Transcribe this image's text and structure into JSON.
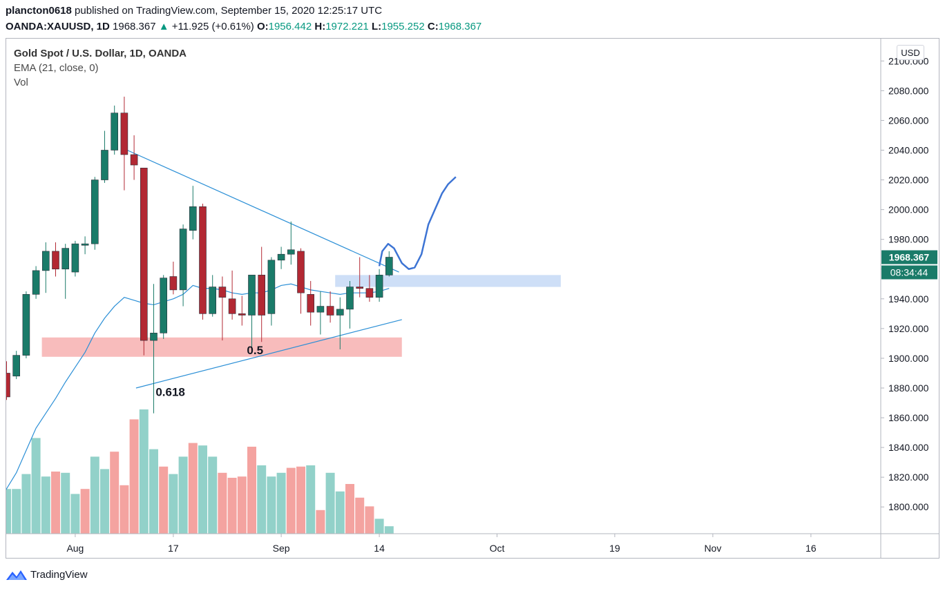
{
  "header": {
    "author": "plancton0618",
    "published": "published on TradingView.com, September 15, 2020 12:25:17 UTC",
    "symbol": "OANDA:XAUUSD, 1D",
    "last": "1968.367",
    "change": "+11.925 (+0.61%)",
    "o_label": "O:",
    "o_value": "1956.442",
    "h_label": "H:",
    "h_value": "1972.221",
    "l_label": "L:",
    "l_value": "1955.252",
    "c_label": "C:",
    "c_value": "1968.367"
  },
  "legend": {
    "symbol": "Gold Spot / U.S. Dollar, 1D, OANDA",
    "ema": "EMA (21, close, 0)",
    "vol": "Vol"
  },
  "currency_button": "USD",
  "price_badge": "1968.367",
  "countdown_badge": "08:34:44",
  "footer": {
    "brand": "TradingView"
  },
  "colors": {
    "up": "#1a7b69",
    "down": "#b22833",
    "vol_up": "#92d1c9",
    "vol_down": "#f4a3a0",
    "ema": "#2b8fd6",
    "trend": "#2b8fd6",
    "projection": "#3d74d4",
    "support_zone": "#f7b5b5",
    "resist_zone": "#c9dcf6"
  },
  "chart_data": {
    "type": "candlestick",
    "title": "Gold Spot / U.S. Dollar, 1D, OANDA",
    "ylim": [
      1782,
      2115
    ],
    "y_ticks": [
      "2100.000",
      "2080.000",
      "2060.000",
      "2040.000",
      "2020.000",
      "2000.000",
      "1980.000",
      "1960.000",
      "1940.000",
      "1920.000",
      "1900.000",
      "1880.000",
      "1860.000",
      "1840.000",
      "1820.000",
      "1800.000"
    ],
    "x_ticks": [
      {
        "label": "Aug",
        "x": 7
      },
      {
        "label": "17",
        "x": 17
      },
      {
        "label": "Sep",
        "x": 28
      },
      {
        "label": "14",
        "x": 38
      },
      {
        "label": "Oct",
        "x": 50
      },
      {
        "label": "19",
        "x": 62
      },
      {
        "label": "Nov",
        "x": 72
      },
      {
        "label": "16",
        "x": 82
      }
    ],
    "candles": [
      {
        "x": 0,
        "o": 1890,
        "h": 1898,
        "l": 1872,
        "c": 1874
      },
      {
        "x": 1,
        "o": 1888,
        "h": 1905,
        "l": 1886,
        "c": 1902
      },
      {
        "x": 2,
        "o": 1902,
        "h": 1945,
        "l": 1900,
        "c": 1943
      },
      {
        "x": 3,
        "o": 1943,
        "h": 1962,
        "l": 1940,
        "c": 1959
      },
      {
        "x": 4,
        "o": 1959,
        "h": 1978,
        "l": 1944,
        "c": 1972
      },
      {
        "x": 5,
        "o": 1972,
        "h": 1978,
        "l": 1955,
        "c": 1960
      },
      {
        "x": 6,
        "o": 1960,
        "h": 1977,
        "l": 1940,
        "c": 1974
      },
      {
        "x": 7,
        "o": 1958,
        "h": 1979,
        "l": 1955,
        "c": 1977
      },
      {
        "x": 8,
        "o": 1976,
        "h": 1982,
        "l": 1970,
        "c": 1977
      },
      {
        "x": 9,
        "o": 1977,
        "h": 2022,
        "l": 1973,
        "c": 2020
      },
      {
        "x": 10,
        "o": 2020,
        "h": 2053,
        "l": 2018,
        "c": 2040
      },
      {
        "x": 11,
        "o": 2040,
        "h": 2070,
        "l": 2037,
        "c": 2065
      },
      {
        "x": 12,
        "o": 2065,
        "h": 2076,
        "l": 2013,
        "c": 2037
      },
      {
        "x": 13,
        "o": 2037,
        "h": 2050,
        "l": 2020,
        "c": 2030
      },
      {
        "x": 14,
        "o": 2028,
        "h": 2028,
        "l": 1902,
        "c": 1912
      },
      {
        "x": 15,
        "o": 1912,
        "h": 1950,
        "l": 1863,
        "c": 1917
      },
      {
        "x": 16,
        "o": 1917,
        "h": 1956,
        "l": 1913,
        "c": 1954
      },
      {
        "x": 17,
        "o": 1955,
        "h": 1965,
        "l": 1943,
        "c": 1946
      },
      {
        "x": 18,
        "o": 1946,
        "h": 1990,
        "l": 1935,
        "c": 1987
      },
      {
        "x": 19,
        "o": 1986,
        "h": 2016,
        "l": 1980,
        "c": 2002
      },
      {
        "x": 20,
        "o": 2002,
        "h": 2004,
        "l": 1926,
        "c": 1930
      },
      {
        "x": 21,
        "o": 1930,
        "h": 1956,
        "l": 1928,
        "c": 1948
      },
      {
        "x": 22,
        "o": 1948,
        "h": 1955,
        "l": 1912,
        "c": 1941
      },
      {
        "x": 23,
        "o": 1940,
        "h": 1959,
        "l": 1926,
        "c": 1930
      },
      {
        "x": 24,
        "o": 1930,
        "h": 1942,
        "l": 1922,
        "c": 1929
      },
      {
        "x": 25,
        "o": 1929,
        "h": 1954,
        "l": 1904,
        "c": 1956
      },
      {
        "x": 26,
        "o": 1956,
        "h": 1975,
        "l": 1911,
        "c": 1929
      },
      {
        "x": 27,
        "o": 1930,
        "h": 1968,
        "l": 1922,
        "c": 1966
      },
      {
        "x": 28,
        "o": 1966,
        "h": 1975,
        "l": 1960,
        "c": 1970
      },
      {
        "x": 29,
        "o": 1970,
        "h": 1992,
        "l": 1963,
        "c": 1973
      },
      {
        "x": 30,
        "o": 1972,
        "h": 1974,
        "l": 1930,
        "c": 1944
      },
      {
        "x": 31,
        "o": 1943,
        "h": 1952,
        "l": 1922,
        "c": 1931
      },
      {
        "x": 32,
        "o": 1931,
        "h": 1945,
        "l": 1916,
        "c": 1935
      },
      {
        "x": 33,
        "o": 1935,
        "h": 1945,
        "l": 1924,
        "c": 1929
      },
      {
        "x": 34,
        "o": 1929,
        "h": 1941,
        "l": 1906,
        "c": 1933
      },
      {
        "x": 35,
        "o": 1933,
        "h": 1952,
        "l": 1920,
        "c": 1948
      },
      {
        "x": 36,
        "o": 1948,
        "h": 1968,
        "l": 1941,
        "c": 1947
      },
      {
        "x": 37,
        "o": 1947,
        "h": 1956,
        "l": 1938,
        "c": 1941
      },
      {
        "x": 38,
        "o": 1941,
        "h": 1960,
        "l": 1938,
        "c": 1956
      },
      {
        "x": 39,
        "o": 1956,
        "h": 1972,
        "l": 1955,
        "c": 1968
      }
    ],
    "volume_scale_max": 1,
    "volume": [
      {
        "x": 0,
        "v": 0.36,
        "up": true
      },
      {
        "x": 1,
        "v": 0.36,
        "up": true
      },
      {
        "x": 2,
        "v": 0.48,
        "up": true
      },
      {
        "x": 3,
        "v": 0.77,
        "up": true
      },
      {
        "x": 4,
        "v": 0.46,
        "up": true
      },
      {
        "x": 5,
        "v": 0.5,
        "up": false
      },
      {
        "x": 6,
        "v": 0.49,
        "up": true
      },
      {
        "x": 7,
        "v": 0.32,
        "up": true
      },
      {
        "x": 8,
        "v": 0.36,
        "up": false
      },
      {
        "x": 9,
        "v": 0.62,
        "up": true
      },
      {
        "x": 10,
        "v": 0.52,
        "up": true
      },
      {
        "x": 11,
        "v": 0.66,
        "up": false
      },
      {
        "x": 12,
        "v": 0.39,
        "up": false
      },
      {
        "x": 13,
        "v": 0.92,
        "up": false
      },
      {
        "x": 14,
        "v": 1.0,
        "up": true
      },
      {
        "x": 15,
        "v": 0.68,
        "up": true
      },
      {
        "x": 16,
        "v": 0.54,
        "up": false
      },
      {
        "x": 17,
        "v": 0.48,
        "up": true
      },
      {
        "x": 18,
        "v": 0.62,
        "up": true
      },
      {
        "x": 19,
        "v": 0.73,
        "up": false
      },
      {
        "x": 20,
        "v": 0.71,
        "up": true
      },
      {
        "x": 21,
        "v": 0.62,
        "up": true
      },
      {
        "x": 22,
        "v": 0.49,
        "up": false
      },
      {
        "x": 23,
        "v": 0.45,
        "up": false
      },
      {
        "x": 24,
        "v": 0.46,
        "up": false
      },
      {
        "x": 25,
        "v": 0.7,
        "up": false
      },
      {
        "x": 26,
        "v": 0.55,
        "up": true
      },
      {
        "x": 27,
        "v": 0.46,
        "up": true
      },
      {
        "x": 28,
        "v": 0.49,
        "up": true
      },
      {
        "x": 29,
        "v": 0.53,
        "up": false
      },
      {
        "x": 30,
        "v": 0.54,
        "up": false
      },
      {
        "x": 31,
        "v": 0.55,
        "up": true
      },
      {
        "x": 32,
        "v": 0.19,
        "up": false
      },
      {
        "x": 33,
        "v": 0.49,
        "up": true
      },
      {
        "x": 34,
        "v": 0.34,
        "up": true
      },
      {
        "x": 35,
        "v": 0.4,
        "up": false
      },
      {
        "x": 36,
        "v": 0.29,
        "up": false
      },
      {
        "x": 37,
        "v": 0.22,
        "up": false
      },
      {
        "x": 38,
        "v": 0.12,
        "up": true
      },
      {
        "x": 39,
        "v": 0.06,
        "up": true
      }
    ],
    "ema": [
      {
        "x": -0.3,
        "y": 1809
      },
      {
        "x": 1,
        "y": 1823
      },
      {
        "x": 2,
        "y": 1838
      },
      {
        "x": 3,
        "y": 1853
      },
      {
        "x": 4,
        "y": 1863
      },
      {
        "x": 5,
        "y": 1873
      },
      {
        "x": 6,
        "y": 1884
      },
      {
        "x": 7,
        "y": 1894
      },
      {
        "x": 8,
        "y": 1904
      },
      {
        "x": 9,
        "y": 1917
      },
      {
        "x": 10,
        "y": 1927
      },
      {
        "x": 11,
        "y": 1935
      },
      {
        "x": 12,
        "y": 1941
      },
      {
        "x": 13,
        "y": 1939
      },
      {
        "x": 14,
        "y": 1937
      },
      {
        "x": 15,
        "y": 1936
      },
      {
        "x": 16,
        "y": 1938
      },
      {
        "x": 17,
        "y": 1940
      },
      {
        "x": 18,
        "y": 1943
      },
      {
        "x": 19,
        "y": 1949
      },
      {
        "x": 20,
        "y": 1947
      },
      {
        "x": 21,
        "y": 1947
      },
      {
        "x": 22,
        "y": 1946
      },
      {
        "x": 23,
        "y": 1944
      },
      {
        "x": 24,
        "y": 1943
      },
      {
        "x": 25,
        "y": 1944
      },
      {
        "x": 26,
        "y": 1944
      },
      {
        "x": 27,
        "y": 1946
      },
      {
        "x": 28,
        "y": 1949
      },
      {
        "x": 29,
        "y": 1950
      },
      {
        "x": 30,
        "y": 1948
      },
      {
        "x": 31,
        "y": 1946
      },
      {
        "x": 32,
        "y": 1945
      },
      {
        "x": 33,
        "y": 1944
      },
      {
        "x": 34,
        "y": 1943
      },
      {
        "x": 35,
        "y": 1944
      },
      {
        "x": 36,
        "y": 1944
      },
      {
        "x": 37,
        "y": 1944
      },
      {
        "x": 38,
        "y": 1945
      },
      {
        "x": 39,
        "y": 1947
      }
    ],
    "trendlines": [
      {
        "name": "descending-resistance",
        "x1": 12.3,
        "y1": 2040,
        "x2": 40,
        "y2": 1958
      },
      {
        "name": "ascending-support",
        "x1": 13.2,
        "y1": 1880,
        "x2": 40.3,
        "y2": 1926
      }
    ],
    "zones": [
      {
        "name": "support-zone",
        "x1": 3.6,
        "x2": 40.3,
        "y_top": 1914,
        "y_bot": 1901,
        "color_key": "support_zone"
      },
      {
        "name": "resistance-zone",
        "x1": 33.5,
        "x2": 56.5,
        "y_top": 1956,
        "y_bot": 1948,
        "color_key": "resist_zone"
      }
    ],
    "projection": [
      {
        "x": 38.0,
        "y": 1962
      },
      {
        "x": 38.3,
        "y": 1972
      },
      {
        "x": 38.9,
        "y": 1977
      },
      {
        "x": 39.5,
        "y": 1974
      },
      {
        "x": 40.3,
        "y": 1964
      },
      {
        "x": 41.0,
        "y": 1960
      },
      {
        "x": 41.6,
        "y": 1961
      },
      {
        "x": 42.3,
        "y": 1970
      },
      {
        "x": 43.0,
        "y": 1990
      },
      {
        "x": 43.8,
        "y": 2002
      },
      {
        "x": 44.4,
        "y": 2011
      },
      {
        "x": 45.0,
        "y": 2017
      },
      {
        "x": 45.8,
        "y": 2022
      }
    ],
    "annotations": [
      {
        "text": "0.5",
        "x": 24.5,
        "y": 1905
      },
      {
        "text": "0.618",
        "x": 15.2,
        "y": 1877
      }
    ]
  }
}
